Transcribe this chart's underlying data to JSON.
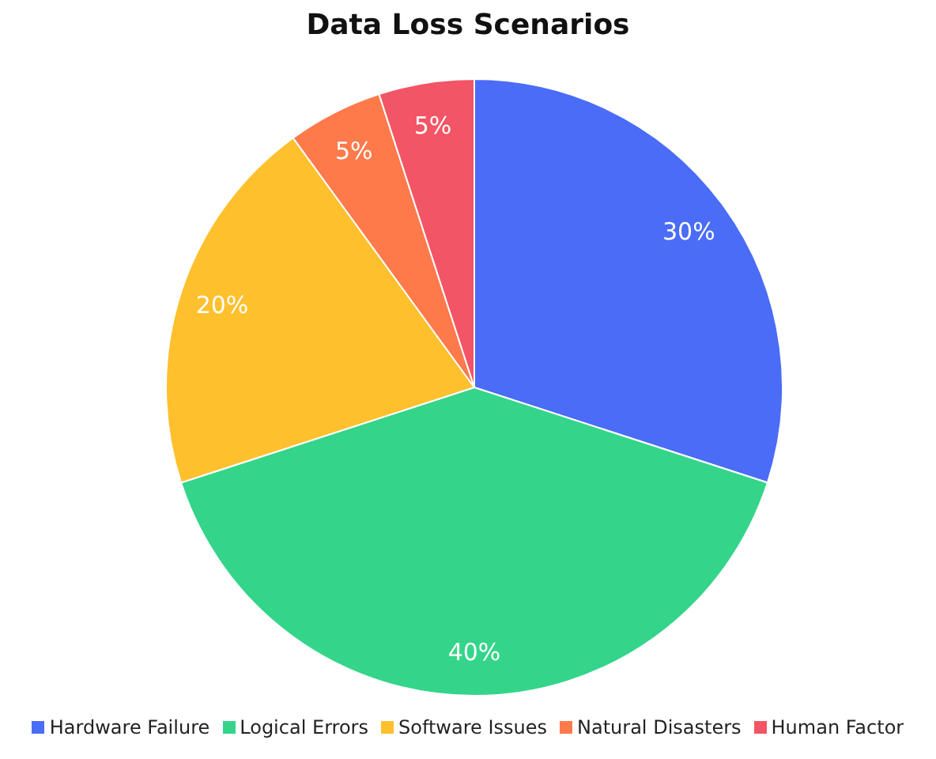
{
  "chart_data": {
    "type": "pie",
    "title": "Data Loss Scenarios",
    "categories": [
      "Hardware Failure",
      "Logical Errors",
      "Software Issues",
      "Natural Disasters",
      "Human Factor"
    ],
    "values": [
      30,
      40,
      20,
      5,
      5
    ],
    "value_labels": [
      "30%",
      "40%",
      "20%",
      "5%",
      "5%"
    ],
    "colors": [
      "#4a6cf7",
      "#34d58a",
      "#ffc02e",
      "#ff7a4a",
      "#f25565"
    ],
    "legend": "bottom"
  }
}
